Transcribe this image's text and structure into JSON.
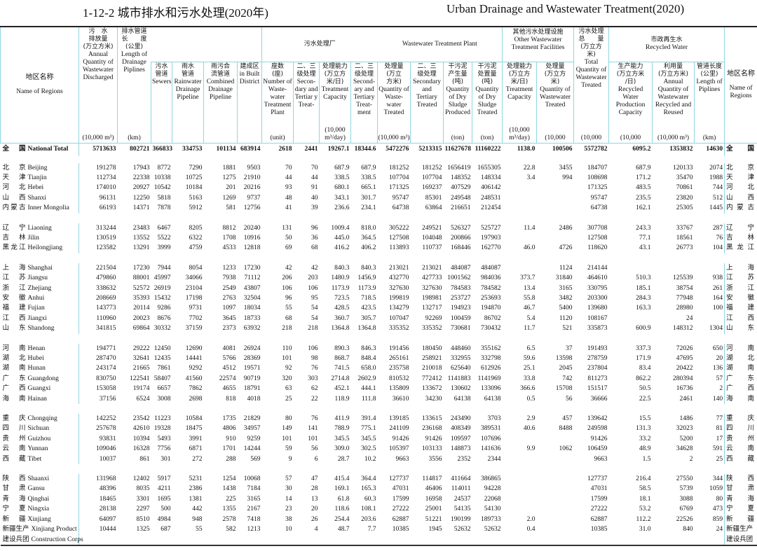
{
  "title": {
    "cn": "1-12-2    城市排水和污水处理(2020年)",
    "en": "Urban Drainage and Wastewater Treatment(2020)"
  },
  "headers": {
    "name": {
      "cn": "地区名称",
      "en": "Name of Regions"
    },
    "discharged": {
      "cn": "污　水\n排放量\n(万立方米)",
      "en": "Annual Quantity of Wastewater Discharged",
      "unit": "(10,000 m³)"
    },
    "length": {
      "cn": "排水管道\n长　　度\n(公里)",
      "en": "Length of Drainage Piplines",
      "unit": "(km)"
    },
    "sewers": {
      "cn": "污水\n管道",
      "en": "Sewers"
    },
    "rainwater": {
      "cn": "雨水\n管道",
      "en": "Rainwater Drainage Pipeline"
    },
    "combined": {
      "cn": "雨污合\n流管道",
      "en": "Combined Drainage Pipeline"
    },
    "built": {
      "cn": "建成区",
      "en": "in Built District"
    },
    "plant_group_cn": "污水处理厂",
    "plant_group_en": "Wastewater Treatment Plant",
    "plants": {
      "cn": "座数\n(座)",
      "en": "Number of Waste-water Treatment Plant",
      "unit": "(unit)"
    },
    "sec_plants": {
      "cn": "二、三\n级处理",
      "en": "Secon-dary and Tertiar y Treat-"
    },
    "capacity": {
      "cn": "处理能力\n(万立方\n米/日)",
      "en": "Treatment Capacity",
      "unit": "(10,000 m³/day)"
    },
    "sec_capacity": {
      "cn": "二、三\n级处理",
      "en": "Second-ary and Tertiary Treat-ment"
    },
    "treated": {
      "cn": "处理量\n(万立\n方米)",
      "en": "Quantity of Waste-water Treated",
      "unit": "(10,000 m³)"
    },
    "sec_treated": {
      "cn": "二、三\n级处理",
      "en": "Secondary and Tertiary Treated"
    },
    "sludge_produced": {
      "cn": "干污泥\n产生量\n(吨)",
      "en": "Quantity of Dry Sludge Produced",
      "unit": "(ton)"
    },
    "sludge_treated": {
      "cn": "干污泥\n处置量\n(吨)",
      "en": "Quantity of Dry Sludge Treated",
      "unit": "(ton)"
    },
    "other_group": {
      "cn": "其他污水处理设施",
      "en": "Other Wastewater Treatment Facilities"
    },
    "other_capacity": {
      "cn": "处理能力\n(万立方\n米/日)",
      "en": "Treatment Capacity",
      "unit": "(10,000 m³/day)"
    },
    "other_treated": {
      "cn": "处理量\n(万立方\n米)",
      "en": "Quantity of Wastewater Treated",
      "unit": "(10,000"
    },
    "total": {
      "cn": "污水处理\n总　　量\n(万立方\n米)",
      "en": "Total Quantity of Wastewater Treated",
      "unit": "(10,000"
    },
    "recycled_group": {
      "cn": "市政再生水",
      "en": "Recycled Water"
    },
    "rec_capacity": {
      "cn": "生产能力\n(万立方米\n/日)",
      "en": "Recycled Water Production Capacity",
      "unit": "(10,000"
    },
    "rec_quantity": {
      "cn": "利用量\n(万立方米)",
      "en": "Annual Quantity of Wastewater Recycled and Reused",
      "unit": "(10,000 m³)"
    },
    "rec_pipe": {
      "cn": "管道长度\n(公里)",
      "en": "Length of Piplines",
      "unit": "(km)"
    }
  },
  "groups": [
    [
      {
        "cn": "全国",
        "en": "National Total",
        "total": true,
        "values": [
          "5713633",
          "802721",
          "366833",
          "334753",
          "101134",
          "683914",
          "2618",
          "2441",
          "19267.1",
          "18344.6",
          "5472276",
          "5213315",
          "11627678",
          "11160222",
          "1138.0",
          "100506",
          "5572782",
          "6095.2",
          "1353832",
          "14630"
        ]
      }
    ],
    [
      {
        "cn": "北京",
        "en": "Beijing",
        "values": [
          "191278",
          "17943",
          "8772",
          "7290",
          "1881",
          "9503",
          "70",
          "70",
          "687.9",
          "687.9",
          "181252",
          "181252",
          "1656419",
          "1655305",
          "22.8",
          "3455",
          "184707",
          "687.9",
          "120133",
          "2074"
        ]
      },
      {
        "cn": "天津",
        "en": "Tianjin",
        "values": [
          "112734",
          "22338",
          "10338",
          "10725",
          "1275",
          "21910",
          "44",
          "44",
          "338.5",
          "338.5",
          "107704",
          "107704",
          "148352",
          "148334",
          "3.4",
          "994",
          "108698",
          "171.2",
          "35470",
          "1988"
        ]
      },
      {
        "cn": "河北",
        "en": "Hebei",
        "values": [
          "174010",
          "20927",
          "10542",
          "10184",
          "201",
          "20216",
          "93",
          "91",
          "680.1",
          "665.1",
          "171325",
          "169237",
          "407529",
          "406142",
          "",
          "",
          "171325",
          "483.5",
          "70861",
          "744"
        ]
      },
      {
        "cn": "山西",
        "en": "Shanxi",
        "values": [
          "96131",
          "12250",
          "5818",
          "5163",
          "1269",
          "9737",
          "48",
          "40",
          "343.1",
          "301.7",
          "95747",
          "85301",
          "249548",
          "248531",
          "",
          "",
          "95747",
          "235.5",
          "23820",
          "512"
        ]
      },
      {
        "cn": "内蒙古",
        "en": "Inner Mongolia",
        "values": [
          "66193",
          "14371",
          "7878",
          "5912",
          "581",
          "12756",
          "41",
          "39",
          "236.6",
          "234.1",
          "64738",
          "63864",
          "216651",
          "212454",
          "",
          "",
          "64738",
          "162.1",
          "25305",
          "1445"
        ]
      }
    ],
    [
      {
        "cn": "辽宁",
        "en": "Liaoning",
        "values": [
          "313244",
          "23483",
          "6467",
          "8205",
          "8812",
          "20240",
          "131",
          "96",
          "1009.4",
          "818.0",
          "305222",
          "249521",
          "526327",
          "525727",
          "11.4",
          "2486",
          "307708",
          "243.3",
          "33767",
          "287"
        ]
      },
      {
        "cn": "吉林",
        "en": "Jilin",
        "values": [
          "130519",
          "13552",
          "5522",
          "6322",
          "1708",
          "10916",
          "50",
          "36",
          "445.0",
          "364.5",
          "127508",
          "104048",
          "200866",
          "197903",
          "",
          "",
          "127508",
          "77.1",
          "18561",
          "76"
        ]
      },
      {
        "cn": "黑龙江",
        "en": "Heilongjiang",
        "values": [
          "123582",
          "13291",
          "3999",
          "4759",
          "4533",
          "12818",
          "69",
          "68",
          "416.2",
          "406.2",
          "113893",
          "110737",
          "168446",
          "162770",
          "46.0",
          "4726",
          "118620",
          "43.1",
          "26773",
          "104"
        ]
      }
    ],
    [
      {
        "cn": "上海",
        "en": "Shanghai",
        "values": [
          "221504",
          "17230",
          "7944",
          "8054",
          "1233",
          "17230",
          "42",
          "42",
          "840.3",
          "840.3",
          "213021",
          "213021",
          "484087",
          "484087",
          "",
          "1124",
          "214144",
          "",
          "",
          ""
        ]
      },
      {
        "cn": "江苏",
        "en": "Jiangsu",
        "values": [
          "479860",
          "88001",
          "45997",
          "34066",
          "7938",
          "71112",
          "206",
          "203",
          "1480.9",
          "1456.9",
          "432770",
          "427733",
          "1001562",
          "984036",
          "373.7",
          "31840",
          "464610",
          "510.3",
          "125539",
          "938"
        ]
      },
      {
        "cn": "浙江",
        "en": "Zhejiang",
        "values": [
          "338632",
          "52572",
          "26919",
          "23104",
          "2549",
          "43807",
          "106",
          "106",
          "1173.9",
          "1173.9",
          "327630",
          "327630",
          "784583",
          "784582",
          "13.4",
          "3165",
          "330795",
          "185.1",
          "38754",
          "261"
        ]
      },
      {
        "cn": "安徽",
        "en": "Anhui",
        "values": [
          "208669",
          "35393",
          "15432",
          "17198",
          "2763",
          "32504",
          "96",
          "95",
          "723.5",
          "718.5",
          "199819",
          "198981",
          "253727",
          "253693",
          "55.8",
          "3482",
          "203300",
          "284.3",
          "77948",
          "164"
        ]
      },
      {
        "cn": "福建",
        "en": "Fujian",
        "values": [
          "143773",
          "20114",
          "9286",
          "9731",
          "1097",
          "18034",
          "55",
          "54",
          "428.5",
          "423.5",
          "134279",
          "132717",
          "194923",
          "194870",
          "46.7",
          "5400",
          "139680",
          "163.3",
          "28980",
          "100"
        ]
      },
      {
        "cn": "江西",
        "en": "Jiangxi",
        "values": [
          "110960",
          "20023",
          "8676",
          "7702",
          "3645",
          "18733",
          "68",
          "54",
          "360.7",
          "305.7",
          "107047",
          "92269",
          "100459",
          "86702",
          "5.4",
          "1120",
          "108167",
          "",
          "24",
          ""
        ]
      },
      {
        "cn": "山东",
        "en": "Shandong",
        "values": [
          "341815",
          "69864",
          "30332",
          "37159",
          "2373",
          "63932",
          "218",
          "218",
          "1364.8",
          "1364.8",
          "335352",
          "335352",
          "730681",
          "730432",
          "11.7",
          "521",
          "335873",
          "600.9",
          "148312",
          "1304"
        ]
      }
    ],
    [
      {
        "cn": "河南",
        "en": "Henan",
        "values": [
          "194771",
          "29222",
          "12450",
          "12690",
          "4081",
          "26924",
          "110",
          "106",
          "890.3",
          "846.3",
          "191456",
          "180450",
          "448460",
          "355162",
          "6.5",
          "37",
          "191493",
          "337.3",
          "72026",
          "650"
        ]
      },
      {
        "cn": "湖北",
        "en": "Hubei",
        "values": [
          "287470",
          "32641",
          "12435",
          "14441",
          "5766",
          "28369",
          "101",
          "98",
          "868.7",
          "848.4",
          "265161",
          "258921",
          "332955",
          "332798",
          "59.6",
          "13598",
          "278759",
          "171.9",
          "47695",
          "20"
        ]
      },
      {
        "cn": "湖南",
        "en": "Hunan",
        "values": [
          "243174",
          "21665",
          "7861",
          "9292",
          "4512",
          "19571",
          "92",
          "76",
          "741.5",
          "658.0",
          "235758",
          "210018",
          "625640",
          "612926",
          "25.1",
          "2045",
          "237804",
          "83.4",
          "20422",
          "136"
        ]
      },
      {
        "cn": "广东",
        "en": "Guangdong",
        "values": [
          "830750",
          "122541",
          "58407",
          "41560",
          "22574",
          "90719",
          "320",
          "303",
          "2714.8",
          "2602.9",
          "810532",
          "772412",
          "1141883",
          "1141969",
          "33.8",
          "742",
          "811273",
          "862.2",
          "280394",
          "57"
        ]
      },
      {
        "cn": "广西",
        "en": "Guangxi",
        "values": [
          "153058",
          "19174",
          "6657",
          "7862",
          "4655",
          "18791",
          "63",
          "62",
          "452.1",
          "444.1",
          "135809",
          "133672",
          "130602",
          "133096",
          "366.6",
          "15708",
          "151517",
          "50.5",
          "16736",
          "2"
        ]
      },
      {
        "cn": "海南",
        "en": "Hainan",
        "values": [
          "37156",
          "6524",
          "3008",
          "2698",
          "818",
          "4018",
          "25",
          "22",
          "118.9",
          "111.8",
          "36610",
          "34230",
          "64138",
          "64138",
          "0.5",
          "56",
          "36666",
          "22.5",
          "2461",
          "140"
        ]
      }
    ],
    [
      {
        "cn": "重庆",
        "en": "Chongqing",
        "values": [
          "142252",
          "23542",
          "11223",
          "10584",
          "1735",
          "21829",
          "80",
          "76",
          "411.9",
          "391.4",
          "139185",
          "133615",
          "243490",
          "3703",
          "2.9",
          "457",
          "139642",
          "15.5",
          "1486",
          "77"
        ]
      },
      {
        "cn": "四川",
        "en": "Sichuan",
        "values": [
          "257678",
          "42610",
          "19328",
          "18475",
          "4806",
          "34957",
          "149",
          "141",
          "788.9",
          "775.1",
          "241109",
          "236168",
          "408349",
          "389531",
          "40.6",
          "8488",
          "249598",
          "131.3",
          "32023",
          "81"
        ]
      },
      {
        "cn": "贵州",
        "en": "Guizhou",
        "values": [
          "93831",
          "10394",
          "5493",
          "3991",
          "910",
          "9259",
          "101",
          "101",
          "345.5",
          "345.5",
          "91426",
          "91426",
          "109597",
          "107696",
          "",
          "",
          "91426",
          "33.2",
          "5200",
          "17"
        ]
      },
      {
        "cn": "云南",
        "en": "Yunnan",
        "values": [
          "109046",
          "16328",
          "7756",
          "6871",
          "1701",
          "14244",
          "59",
          "56",
          "309.0",
          "302.5",
          "105397",
          "103133",
          "148873",
          "141636",
          "9.9",
          "1062",
          "106459",
          "48.9",
          "34628",
          "591"
        ]
      },
      {
        "cn": "西藏",
        "en": "Tibet",
        "values": [
          "10037",
          "861",
          "301",
          "272",
          "288",
          "569",
          "9",
          "6",
          "28.7",
          "10.2",
          "9663",
          "3556",
          "2352",
          "2344",
          "",
          "",
          "9663",
          "1.5",
          "2",
          "25"
        ]
      }
    ],
    [
      {
        "cn": "陕西",
        "en": "Shaanxi",
        "values": [
          "131968",
          "12402",
          "5917",
          "5231",
          "1254",
          "10068",
          "57",
          "47",
          "415.4",
          "364.4",
          "127737",
          "114817",
          "411664",
          "386865",
          "",
          "",
          "127737",
          "216.4",
          "27550",
          "344"
        ]
      },
      {
        "cn": "甘肃",
        "en": "Gansu",
        "values": [
          "48396",
          "8035",
          "4211",
          "2386",
          "1438",
          "7184",
          "30",
          "28",
          "169.1",
          "165.3",
          "47031",
          "46406",
          "114011",
          "94228",
          "",
          "",
          "47031",
          "58.5",
          "5739",
          "1059"
        ]
      },
      {
        "cn": "青海",
        "en": "Qinghai",
        "values": [
          "18465",
          "3301",
          "1695",
          "1381",
          "225",
          "3165",
          "14",
          "13",
          "61.8",
          "60.3",
          "17599",
          "16958",
          "24537",
          "22068",
          "",
          "",
          "17599",
          "18.1",
          "3088",
          "80"
        ]
      },
      {
        "cn": "宁夏",
        "en": "Ningxia",
        "values": [
          "28138",
          "2297",
          "500",
          "442",
          "1355",
          "2167",
          "23",
          "20",
          "118.6",
          "108.1",
          "27222",
          "25001",
          "54135",
          "54130",
          "",
          "",
          "27222",
          "53.2",
          "6769",
          "473"
        ]
      },
      {
        "cn": "新疆",
        "en": "Xinjiang",
        "values": [
          "64097",
          "8510",
          "4984",
          "948",
          "2578",
          "7418",
          "38",
          "26",
          "254.4",
          "203.6",
          "62887",
          "51221",
          "190199",
          "189733",
          "2.0",
          "",
          "62887",
          "112.2",
          "22526",
          "859"
        ]
      },
      {
        "cn": "新疆生产",
        "en": "Xinjiang Product",
        "long": true,
        "values": [
          "10444",
          "1325",
          "687",
          "55",
          "582",
          "1213",
          "10",
          "4",
          "48.7",
          "7.7",
          "10385",
          "1945",
          "52632",
          "52632",
          "0.4",
          "",
          "10385",
          "31.0",
          "840",
          "24"
        ]
      },
      {
        "cn": "建设兵团",
        "en": "Construction Corps",
        "long": true,
        "values": []
      }
    ]
  ]
}
